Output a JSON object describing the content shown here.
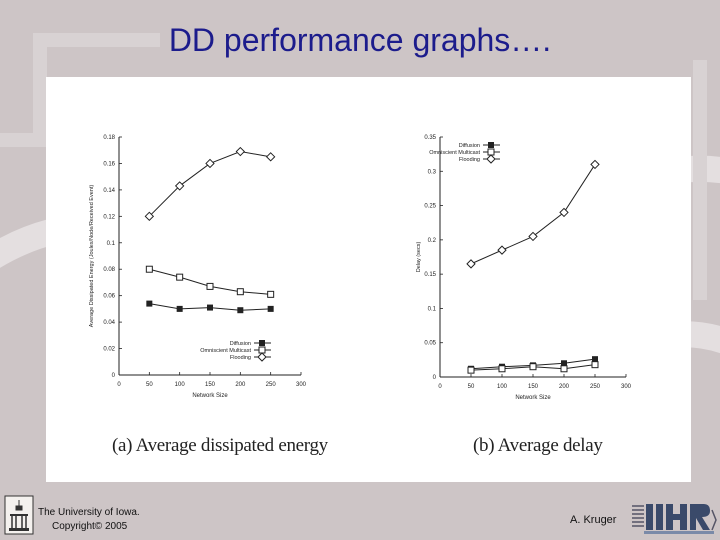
{
  "slide": {
    "title": "DD performance graphs….",
    "footer_left_line1": "The University of Iowa.",
    "footer_left_line2": "Copyright© 2005",
    "footer_right": "A. Kruger"
  },
  "colors": {
    "background": "#cdc5c6",
    "title": "#1c1c8c",
    "plot_ink": "#222222"
  },
  "chart_data": [
    {
      "type": "line",
      "caption": "(a) Average dissipated energy",
      "xlabel": "Network Size",
      "ylabel": "Average Dissipated Energy (Joules/Node/Received Event)",
      "xlim": [
        0,
        300
      ],
      "ylim": [
        0,
        0.18
      ],
      "xticks": [
        0,
        50,
        100,
        150,
        200,
        250,
        300
      ],
      "yticks": [
        0,
        0.02,
        0.04,
        0.06,
        0.08,
        0.1,
        0.12,
        0.14,
        0.16,
        0.18
      ],
      "legend_position": "bottom-right",
      "grid": false,
      "x": [
        50,
        100,
        150,
        200,
        250
      ],
      "series": [
        {
          "name": "Diffusion",
          "marker": "filled-square",
          "values": [
            0.054,
            0.05,
            0.051,
            0.049,
            0.05
          ]
        },
        {
          "name": "Omniscient Multicast",
          "marker": "open-square",
          "values": [
            0.08,
            0.074,
            0.067,
            0.063,
            0.061
          ]
        },
        {
          "name": "Flooding",
          "marker": "open-diamond",
          "values": [
            0.12,
            0.143,
            0.16,
            0.169,
            0.165
          ]
        }
      ]
    },
    {
      "type": "line",
      "caption": "(b) Average delay",
      "xlabel": "Network Size",
      "ylabel": "Delay (secs)",
      "xlim": [
        0,
        300
      ],
      "ylim": [
        0,
        0.35
      ],
      "xticks": [
        0,
        50,
        100,
        150,
        200,
        250,
        300
      ],
      "yticks": [
        0,
        0.05,
        0.1,
        0.15,
        0.2,
        0.25,
        0.3,
        0.35
      ],
      "legend_position": "top-right",
      "grid": false,
      "x": [
        50,
        100,
        150,
        200,
        250
      ],
      "series": [
        {
          "name": "Diffusion",
          "marker": "filled-square",
          "values": [
            0.012,
            0.015,
            0.017,
            0.02,
            0.026
          ]
        },
        {
          "name": "Omniscient Multicast",
          "marker": "open-square",
          "values": [
            0.01,
            0.012,
            0.015,
            0.012,
            0.018
          ]
        },
        {
          "name": "Flooding",
          "marker": "open-diamond",
          "values": [
            0.165,
            0.185,
            0.205,
            0.24,
            0.31
          ]
        }
      ]
    }
  ]
}
